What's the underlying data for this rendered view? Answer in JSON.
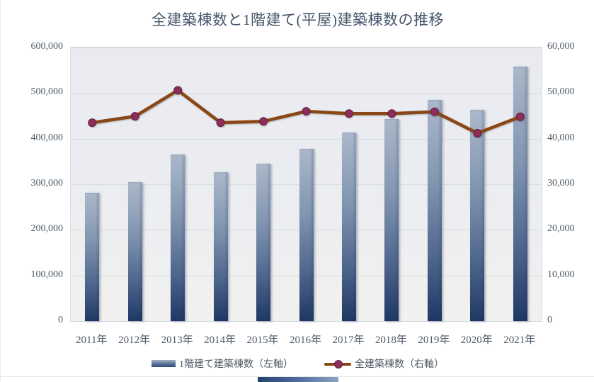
{
  "chart_data": {
    "type": "bar",
    "subtype": "combo-bar-line-dual-axis",
    "title": "全建築棟数と1階建て(平屋)建築棟数の推移",
    "categories": [
      "2011年",
      "2012年",
      "2013年",
      "2014年",
      "2015年",
      "2016年",
      "2017年",
      "2018年",
      "2019年",
      "2020年",
      "2021年"
    ],
    "series": [
      {
        "name": "1階建て建築棟数（左軸）",
        "type": "bar",
        "axis": "left",
        "values": [
          282000,
          305000,
          365000,
          327000,
          345000,
          378000,
          413000,
          443000,
          485000,
          463000,
          558000
        ]
      },
      {
        "name": "全建築棟数（右軸）",
        "type": "line",
        "axis": "right",
        "values": [
          43500,
          44900,
          50600,
          43500,
          43800,
          46000,
          45500,
          45500,
          45900,
          41200,
          44800
        ]
      }
    ],
    "left_axis": {
      "min": 0,
      "max": 600000,
      "step": 100000,
      "tick_labels": [
        "0",
        "100,000",
        "200,000",
        "300,000",
        "400,000",
        "500,000",
        "600,000"
      ]
    },
    "right_axis": {
      "min": 0,
      "max": 60000,
      "step": 10000,
      "tick_labels": [
        "0",
        "10,000",
        "20,000",
        "30,000",
        "40,000",
        "50,000",
        "60,000"
      ]
    },
    "grid": true,
    "legend_position": "bottom",
    "colors": {
      "bar_gradient_top": "#abb8ca",
      "bar_gradient_bottom": "#1f3864",
      "line": "#8a4615",
      "marker_fill": "#8e2d5b",
      "marker_stroke": "#5f1f38",
      "title_text": "#44546a",
      "axis_text": "#4f5b66",
      "plot_background": "#eaecf1",
      "gridline": "#d8dbe2"
    }
  },
  "page": {
    "bottom_strip": "partial-ui-element"
  }
}
